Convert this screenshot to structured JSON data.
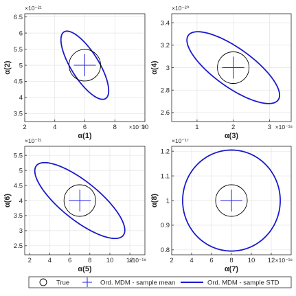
{
  "chart_data": [
    {
      "type": "scatter",
      "xlabel": "α(1)",
      "ylabel": "α(2)",
      "x_exponent": "×10⁻¹⁹",
      "y_exponent": "×10⁻²¹",
      "xlim": [
        2,
        10
      ],
      "ylim": [
        3.25,
        6.6
      ],
      "x_ticks": [
        2,
        4,
        6,
        8,
        10
      ],
      "y_ticks": [
        3.5,
        4,
        4.5,
        5,
        5.5,
        6,
        6.5
      ],
      "grid": true,
      "true_value": [
        6,
        5
      ],
      "sample_mean": [
        6,
        5
      ],
      "sample_std_ellipse": {
        "center": [
          6,
          5
        ],
        "semi_major": 2.1,
        "semi_minor": 0.8,
        "angle_deg": -45,
        "scale_y": 0.667
      }
    },
    {
      "type": "scatter",
      "xlabel": "α(3)",
      "ylabel": "α(4)",
      "x_exponent": "×10⁻¹⁸",
      "y_exponent": "×10⁻²⁰",
      "xlim": [
        0.3,
        3.6
      ],
      "ylim": [
        2.52,
        3.48
      ],
      "x_ticks": [
        1,
        2,
        3
      ],
      "y_ticks": [
        2.6,
        2.8,
        3,
        3.2,
        3.4
      ],
      "grid": true,
      "true_value": [
        2,
        3
      ],
      "sample_mean": [
        2,
        3
      ],
      "sample_std_ellipse": {
        "center": [
          2,
          3
        ],
        "semi_major": 1.7,
        "semi_minor": 0.62,
        "angle_deg": -45,
        "scale_y": 0.25
      }
    },
    {
      "type": "scatter",
      "xlabel": "α(5)",
      "ylabel": "α(6)",
      "x_exponent": "×10⁻¹⁹",
      "y_exponent": "×10⁻²¹",
      "xlim": [
        1.5,
        13.5
      ],
      "ylim": [
        2.2,
        5.8
      ],
      "x_ticks": [
        2,
        4,
        6,
        8,
        10,
        12
      ],
      "y_ticks": [
        2.5,
        3,
        3.5,
        4,
        4.5,
        5,
        5.5
      ],
      "grid": true,
      "true_value": [
        7,
        4
      ],
      "sample_mean": [
        7,
        4
      ],
      "sample_std_ellipse": {
        "center": [
          7,
          4
        ],
        "semi_major": 6.0,
        "semi_minor": 2.1,
        "angle_deg": -45,
        "scale_y": 0.28
      }
    },
    {
      "type": "scatter",
      "xlabel": "α(7)",
      "ylabel": "α(8)",
      "x_exponent": "×10⁻¹⁸",
      "y_exponent": "×10⁻¹⁷",
      "xlim": [
        2,
        14
      ],
      "ylim": [
        0.78,
        1.22
      ],
      "x_ticks": [
        2,
        4,
        6,
        8,
        10,
        12
      ],
      "y_ticks": [
        0.8,
        0.9,
        1,
        1.1,
        1.2
      ],
      "grid": true,
      "true_value": [
        8,
        1
      ],
      "sample_mean": [
        8,
        1
      ],
      "sample_std_ellipse": {
        "center": [
          8,
          1
        ],
        "semi_major": 4.9,
        "semi_minor": 4.9,
        "angle_deg": 0,
        "scale_y": 0.0418
      }
    }
  ],
  "legend": {
    "placement": "bottom",
    "entries": [
      {
        "label": "True",
        "marker": "circle",
        "color": "#000000"
      },
      {
        "label": "Ord. MDM - sample mean",
        "marker": "plus",
        "color": "#0000cc"
      },
      {
        "label": "Ord. MDM - sample STD",
        "marker": "line",
        "color": "#1a1acc"
      }
    ]
  },
  "colors": {
    "ellipse": "#1a1acc",
    "mean": "#2222dd",
    "true": "#000000",
    "grid": "#e3e3e3",
    "axes": "#262626"
  }
}
